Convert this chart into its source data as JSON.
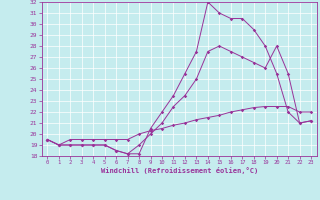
{
  "xlabel": "Windchill (Refroidissement éolien,°C)",
  "background_color": "#c5ecee",
  "line_color": "#993399",
  "xlim": [
    -0.5,
    23.5
  ],
  "ylim": [
    18,
    32
  ],
  "xticks": [
    0,
    1,
    2,
    3,
    4,
    5,
    6,
    7,
    8,
    9,
    10,
    11,
    12,
    13,
    14,
    15,
    16,
    17,
    18,
    19,
    20,
    21,
    22,
    23
  ],
  "yticks": [
    18,
    19,
    20,
    21,
    22,
    23,
    24,
    25,
    26,
    27,
    28,
    29,
    30,
    31,
    32
  ],
  "series": [
    {
      "x": [
        0,
        1,
        2,
        3,
        4,
        5,
        6,
        7,
        8,
        9,
        10,
        11,
        12,
        13,
        14,
        15,
        16,
        17,
        18,
        19,
        20,
        21,
        22,
        23
      ],
      "y": [
        19.5,
        19.0,
        19.0,
        19.0,
        19.0,
        19.0,
        18.5,
        18.2,
        18.2,
        20.5,
        22.0,
        23.5,
        25.5,
        27.5,
        32.0,
        31.0,
        30.5,
        30.5,
        29.5,
        28.0,
        25.5,
        22.0,
        21.0,
        21.2
      ]
    },
    {
      "x": [
        0,
        1,
        2,
        3,
        4,
        5,
        6,
        7,
        8,
        9,
        10,
        11,
        12,
        13,
        14,
        15,
        16,
        17,
        18,
        19,
        20,
        21,
        22,
        23
      ],
      "y": [
        19.5,
        19.0,
        19.0,
        19.0,
        19.0,
        19.0,
        18.5,
        18.2,
        19.0,
        20.0,
        21.0,
        22.5,
        23.5,
        25.0,
        27.5,
        28.0,
        27.5,
        27.0,
        26.5,
        26.0,
        28.0,
        25.5,
        21.0,
        21.2
      ]
    },
    {
      "x": [
        0,
        1,
        2,
        3,
        4,
        5,
        6,
        7,
        8,
        9,
        10,
        11,
        12,
        13,
        14,
        15,
        16,
        17,
        18,
        19,
        20,
        21,
        22,
        23
      ],
      "y": [
        19.5,
        19.0,
        19.5,
        19.5,
        19.5,
        19.5,
        19.5,
        19.5,
        20.0,
        20.3,
        20.5,
        20.8,
        21.0,
        21.3,
        21.5,
        21.7,
        22.0,
        22.2,
        22.4,
        22.5,
        22.5,
        22.5,
        22.0,
        22.0
      ]
    }
  ]
}
